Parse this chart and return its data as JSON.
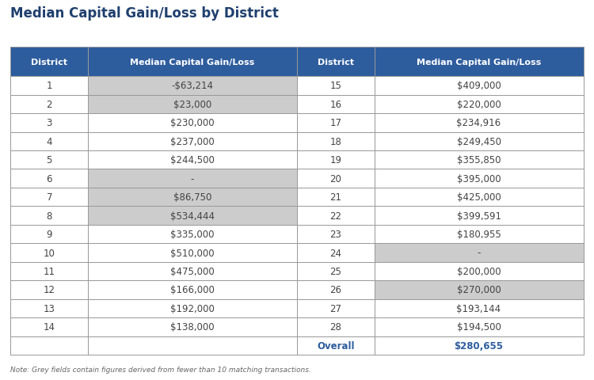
{
  "title": "Median Capital Gain/Loss by District",
  "note": "Note: Grey fields contain figures derived from fewer than 10 matching transactions.",
  "header_bg": "#2E5D9E",
  "header_text_color": "#FFFFFF",
  "header_labels": [
    "District",
    "Median Capital Gain/Loss",
    "District",
    "Median Capital Gain/Loss"
  ],
  "left_data": [
    {
      "district": "1",
      "value": "-$63,214",
      "grey": true
    },
    {
      "district": "2",
      "value": "$23,000",
      "grey": true
    },
    {
      "district": "3",
      "value": "$230,000",
      "grey": false
    },
    {
      "district": "4",
      "value": "$237,000",
      "grey": false
    },
    {
      "district": "5",
      "value": "$244,500",
      "grey": false
    },
    {
      "district": "6",
      "value": "-",
      "grey": true
    },
    {
      "district": "7",
      "value": "$86,750",
      "grey": true
    },
    {
      "district": "8",
      "value": "$534,444",
      "grey": true
    },
    {
      "district": "9",
      "value": "$335,000",
      "grey": false
    },
    {
      "district": "10",
      "value": "$510,000",
      "grey": false
    },
    {
      "district": "11",
      "value": "$475,000",
      "grey": false
    },
    {
      "district": "12",
      "value": "$166,000",
      "grey": false
    },
    {
      "district": "13",
      "value": "$192,000",
      "grey": false
    },
    {
      "district": "14",
      "value": "$138,000",
      "grey": false
    }
  ],
  "right_data": [
    {
      "district": "15",
      "value": "$409,000",
      "grey": false
    },
    {
      "district": "16",
      "value": "$220,000",
      "grey": false
    },
    {
      "district": "17",
      "value": "$234,916",
      "grey": false
    },
    {
      "district": "18",
      "value": "$249,450",
      "grey": false
    },
    {
      "district": "19",
      "value": "$355,850",
      "grey": false
    },
    {
      "district": "20",
      "value": "$395,000",
      "grey": false
    },
    {
      "district": "21",
      "value": "$425,000",
      "grey": false
    },
    {
      "district": "22",
      "value": "$399,591",
      "grey": false
    },
    {
      "district": "23",
      "value": "$180,955",
      "grey": false
    },
    {
      "district": "24",
      "value": "-",
      "grey": true
    },
    {
      "district": "25",
      "value": "$200,000",
      "grey": false
    },
    {
      "district": "26",
      "value": "$270,000",
      "grey": true
    },
    {
      "district": "27",
      "value": "$193,144",
      "grey": false
    },
    {
      "district": "28",
      "value": "$194,500",
      "grey": false
    }
  ],
  "overall_label": "Overall",
  "overall_value": "$280,655",
  "grey_color": "#CCCCCC",
  "white_color": "#FFFFFF",
  "border_color": "#999999",
  "overall_text_color": "#2E5D9E",
  "body_text_color": "#444444",
  "bg_color": "#FFFFFF",
  "title_color": "#1F3F6E"
}
